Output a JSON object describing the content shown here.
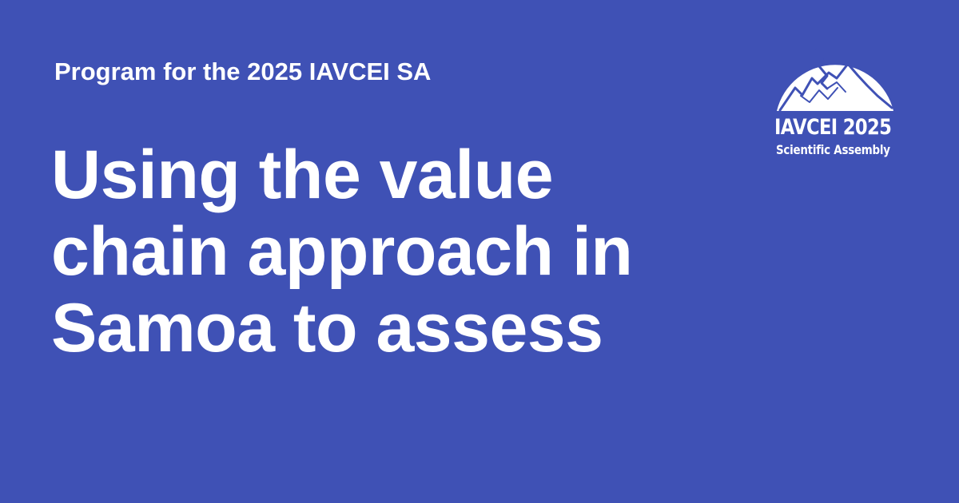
{
  "header": {
    "eyebrow": "Program for the 2025 IAVCEI SA"
  },
  "main": {
    "title_lines": [
      "Using the value",
      "chain approach in",
      "Samoa to assess"
    ]
  },
  "logo": {
    "name": "IAVCEI 2025",
    "subtitle": "Scientific Assembly",
    "icon": "volcano-dome-icon"
  },
  "colors": {
    "background": "#3f51b5",
    "foreground": "#ffffff"
  }
}
